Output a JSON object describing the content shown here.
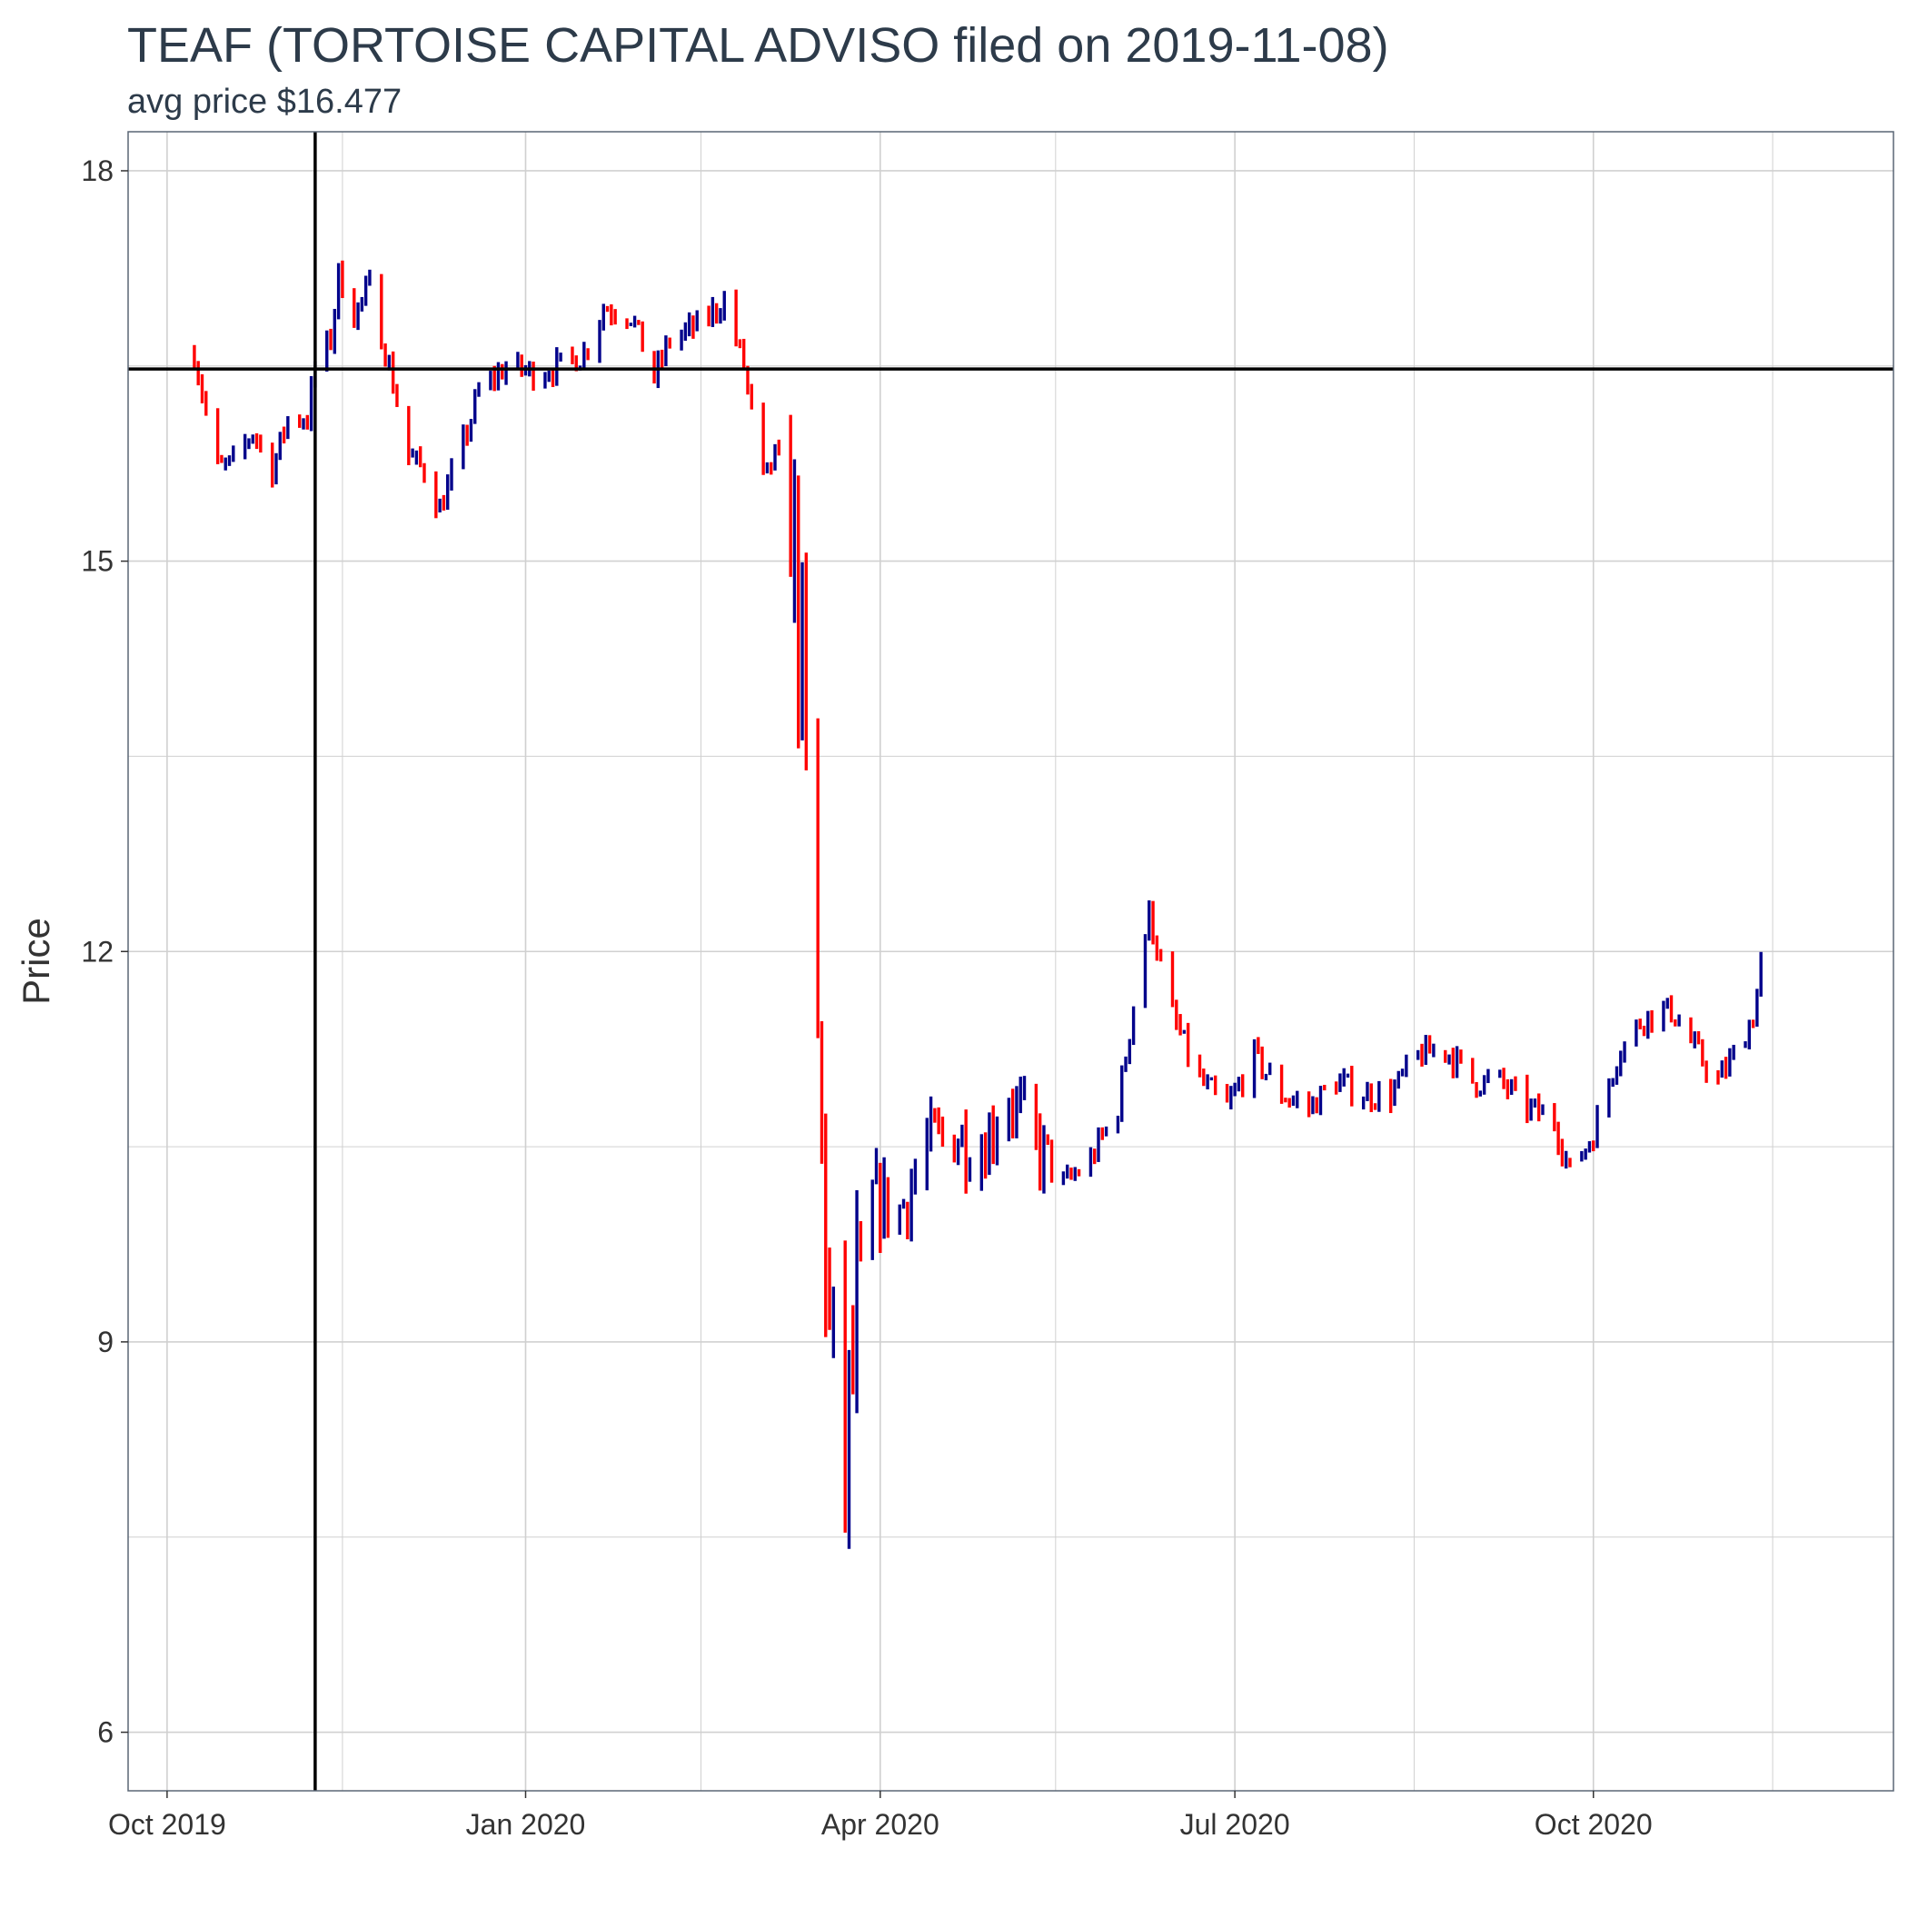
{
  "chart_data": {
    "type": "ohlc",
    "title": "TEAF (TORTOISE CAPITAL ADVISO filed on 2019-11-08)",
    "subtitle": "avg price $16.477",
    "ylabel": "Price",
    "xlabel": "",
    "ylim": [
      5.55,
      18.3
    ],
    "xlim": [
      "2019-09-21",
      "2020-12-17"
    ],
    "y_ticks": [
      6,
      9,
      12,
      15,
      18
    ],
    "y_minor_ticks": [
      7.5,
      10.5,
      13.5,
      16.5
    ],
    "x_ticks": [
      {
        "date": "2019-10-01",
        "label": "Oct 2019"
      },
      {
        "date": "2020-01-01",
        "label": "Jan 2020"
      },
      {
        "date": "2020-04-01",
        "label": "Apr 2020"
      },
      {
        "date": "2020-07-01",
        "label": "Jul 2020"
      },
      {
        "date": "2020-10-01",
        "label": "Oct 2020"
      }
    ],
    "x_minor_ticks": [
      "2019-11-15",
      "2020-02-15",
      "2020-05-16",
      "2020-08-16",
      "2020-11-16"
    ],
    "hline": 16.477,
    "vline": "2019-11-08",
    "colors": {
      "up": "#00008b",
      "down": "#ff0000",
      "grid": "#d0d0d0",
      "ref": "#000000"
    },
    "grid": true,
    "legend": "none",
    "anchors": [
      [
        "2019-10-08",
        16.6
      ],
      [
        "2019-10-10",
        16.3
      ],
      [
        "2019-10-14",
        15.7
      ],
      [
        "2019-10-18",
        15.75
      ],
      [
        "2019-10-23",
        16.0
      ],
      [
        "2019-10-28",
        15.7
      ],
      [
        "2019-11-01",
        16.1
      ],
      [
        "2019-11-06",
        16.1
      ],
      [
        "2019-11-08",
        16.5
      ],
      [
        "2019-11-12",
        16.7
      ],
      [
        "2019-11-14",
        17.2
      ],
      [
        "2019-11-18",
        16.9
      ],
      [
        "2019-11-22",
        17.1
      ],
      [
        "2019-11-27",
        16.5
      ],
      [
        "2019-12-02",
        15.8
      ],
      [
        "2019-12-06",
        15.7
      ],
      [
        "2019-12-10",
        15.4
      ],
      [
        "2019-12-16",
        15.9
      ],
      [
        "2019-12-20",
        16.3
      ],
      [
        "2019-12-27",
        16.5
      ],
      [
        "2020-01-03",
        16.45
      ],
      [
        "2020-01-10",
        16.5
      ],
      [
        "2020-01-16",
        16.6
      ],
      [
        "2020-01-21",
        16.95
      ],
      [
        "2020-01-28",
        16.9
      ],
      [
        "2020-02-03",
        16.4
      ],
      [
        "2020-02-07",
        16.7
      ],
      [
        "2020-02-14",
        16.8
      ],
      [
        "2020-02-21",
        17.0
      ],
      [
        "2020-02-26",
        16.5
      ],
      [
        "2020-03-02",
        15.6
      ],
      [
        "2020-03-05",
        15.8
      ],
      [
        "2020-03-09",
        15.5
      ],
      [
        "2020-03-12",
        14.0
      ],
      [
        "2020-03-16",
        11.2
      ],
      [
        "2020-03-19",
        9.0
      ],
      [
        "2020-03-23",
        8.0
      ],
      [
        "2020-03-26",
        9.2
      ],
      [
        "2020-03-30",
        10.1
      ],
      [
        "2020-04-06",
        10.0
      ],
      [
        "2020-04-13",
        10.5
      ],
      [
        "2020-04-20",
        10.6
      ],
      [
        "2020-04-27",
        10.5
      ],
      [
        "2020-05-04",
        10.9
      ],
      [
        "2020-05-11",
        10.5
      ],
      [
        "2020-05-18",
        10.2
      ],
      [
        "2020-05-25",
        10.4
      ],
      [
        "2020-06-01",
        10.8
      ],
      [
        "2020-06-05",
        11.6
      ],
      [
        "2020-06-09",
        12.3
      ],
      [
        "2020-06-15",
        11.5
      ],
      [
        "2020-06-22",
        11.0
      ],
      [
        "2020-06-29",
        10.8
      ],
      [
        "2020-07-06",
        11.2
      ],
      [
        "2020-07-13",
        10.9
      ],
      [
        "2020-07-20",
        10.8
      ],
      [
        "2020-07-27",
        11.0
      ],
      [
        "2020-08-03",
        10.9
      ],
      [
        "2020-08-10",
        10.9
      ],
      [
        "2020-08-17",
        11.2
      ],
      [
        "2020-08-24",
        11.25
      ],
      [
        "2020-08-31",
        11.0
      ],
      [
        "2020-09-07",
        11.0
      ],
      [
        "2020-09-14",
        10.8
      ],
      [
        "2020-09-21",
        10.7
      ],
      [
        "2020-09-25",
        10.3
      ],
      [
        "2020-10-01",
        10.6
      ],
      [
        "2020-10-07",
        11.2
      ],
      [
        "2020-10-14",
        11.5
      ],
      [
        "2020-10-21",
        11.55
      ],
      [
        "2020-10-28",
        11.2
      ],
      [
        "2020-11-02",
        11.0
      ],
      [
        "2020-11-06",
        11.2
      ],
      [
        "2020-11-11",
        11.5
      ],
      [
        "2020-11-13",
        11.9
      ]
    ]
  }
}
